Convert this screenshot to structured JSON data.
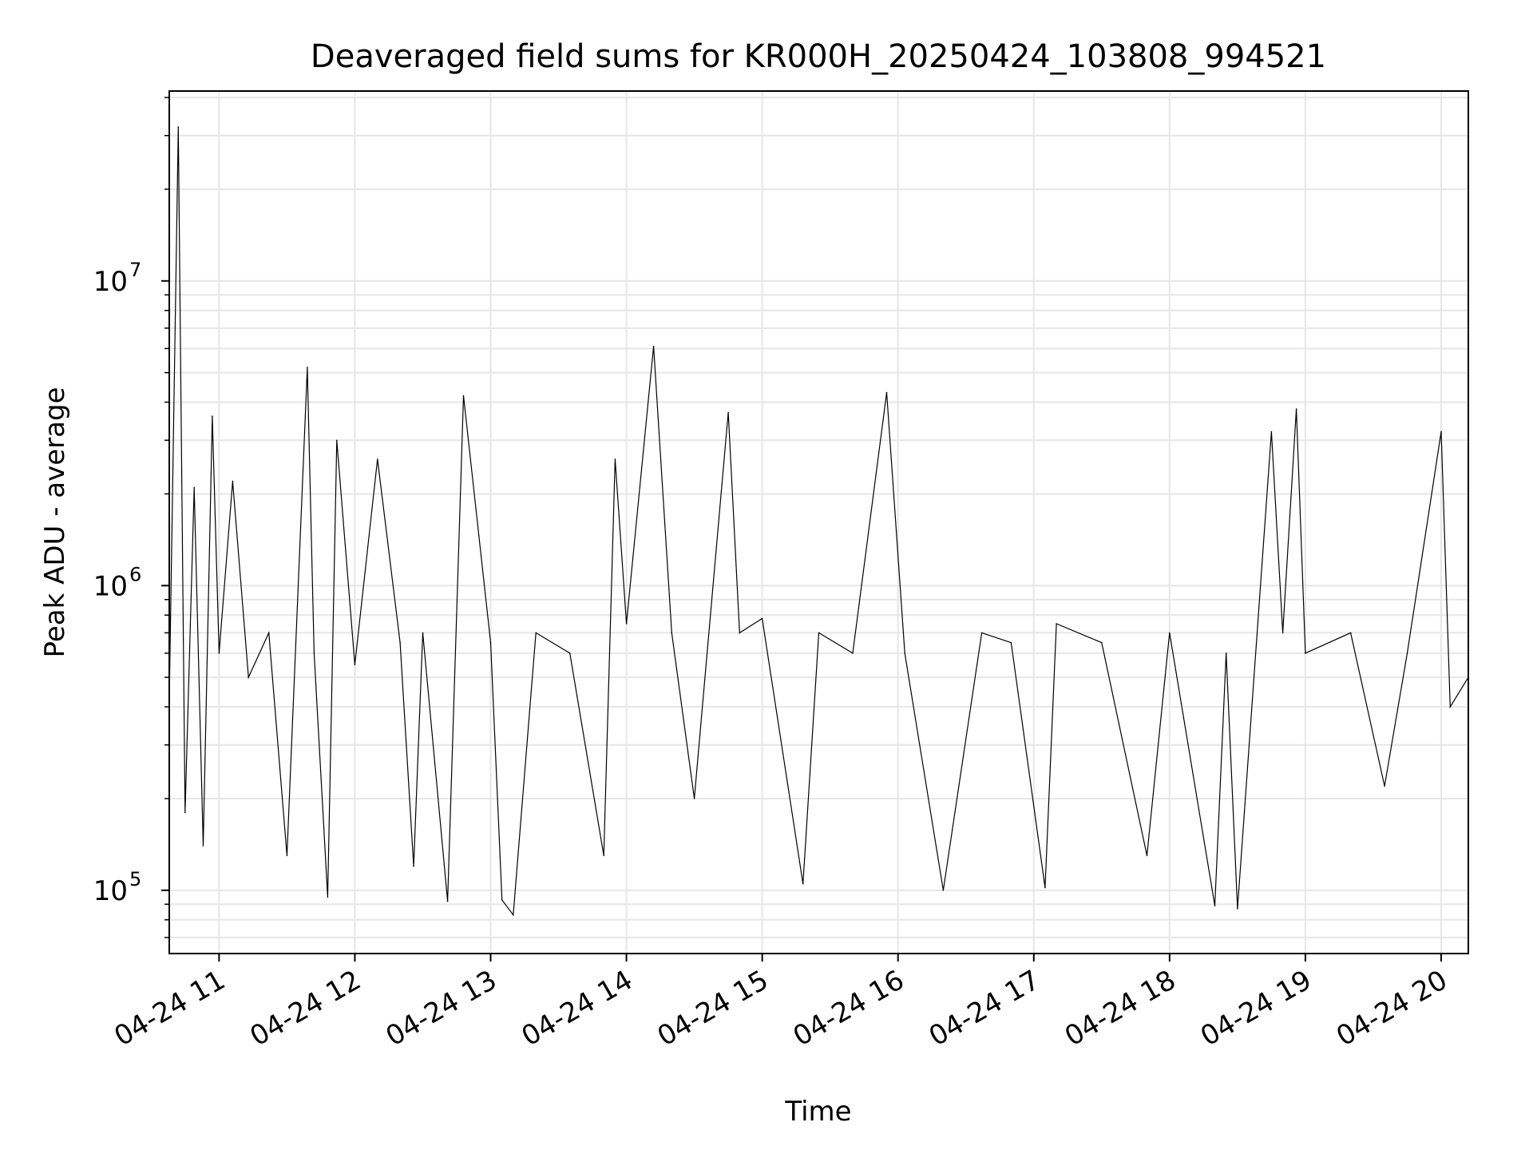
{
  "chart_data": {
    "type": "line",
    "title": "Deaveraged field sums for KR000H_20250424_103808_994521",
    "xlabel": "Time",
    "ylabel": "Peak ADU - average",
    "yscale": "log",
    "ylim": [
      62000,
      42000000
    ],
    "xlim": [
      "04-24 10:38",
      "04-24 20:12"
    ],
    "grid": true,
    "line_color": "#000000",
    "x_ticks": [
      "04-24 11",
      "04-24 12",
      "04-24 13",
      "04-24 14",
      "04-24 15",
      "04-24 16",
      "04-24 17",
      "04-24 18",
      "04-24 19",
      "04-24 20"
    ],
    "y_ticks": [
      {
        "base": "10",
        "exp": "5",
        "value": 100000
      },
      {
        "base": "10",
        "exp": "6",
        "value": 1000000
      },
      {
        "base": "10",
        "exp": "7",
        "value": 10000000
      }
    ],
    "x": [
      "04-24 10:38",
      "04-24 10:42",
      "04-24 10:45",
      "04-24 10:49",
      "04-24 10:53",
      "04-24 10:57",
      "04-24 11:00",
      "04-24 11:06",
      "04-24 11:13",
      "04-24 11:22",
      "04-24 11:30",
      "04-24 11:39",
      "04-24 11:42",
      "04-24 11:48",
      "04-24 11:52",
      "04-24 12:00",
      "04-24 12:10",
      "04-24 12:20",
      "04-24 12:26",
      "04-24 12:30",
      "04-24 12:41",
      "04-24 12:48",
      "04-24 13:00",
      "04-24 13:05",
      "04-24 13:10",
      "04-24 13:20",
      "04-24 13:35",
      "04-24 13:50",
      "04-24 13:55",
      "04-24 14:00",
      "04-24 14:12",
      "04-24 14:20",
      "04-24 14:30",
      "04-24 14:45",
      "04-24 14:50",
      "04-24 15:00",
      "04-24 15:18",
      "04-24 15:25",
      "04-24 15:40",
      "04-24 15:55",
      "04-24 16:03",
      "04-24 16:20",
      "04-24 16:37",
      "04-24 16:50",
      "04-24 17:05",
      "04-24 17:10",
      "04-24 17:30",
      "04-24 17:50",
      "04-24 18:00",
      "04-24 18:20",
      "04-24 18:25",
      "04-24 18:30",
      "04-24 18:45",
      "04-24 18:50",
      "04-24 18:56",
      "04-24 19:00",
      "04-24 19:20",
      "04-24 19:35",
      "04-24 19:45",
      "04-24 20:00",
      "04-24 20:04",
      "04-24 20:12"
    ],
    "series": [
      {
        "values": [
          420000,
          32000000,
          180000,
          2100000,
          140000,
          3600000,
          600000,
          2200000,
          500000,
          700000,
          130000,
          5200000,
          600000,
          95000,
          3000000,
          550000,
          2600000,
          650000,
          120000,
          700000,
          92000,
          4200000,
          650000,
          93000,
          83000,
          700000,
          600000,
          130000,
          2600000,
          750000,
          6100000,
          700000,
          200000,
          3700000,
          700000,
          780000,
          105000,
          700000,
          600000,
          4300000,
          600000,
          100000,
          700000,
          650000,
          102000,
          750000,
          650000,
          130000,
          700000,
          89000,
          600000,
          87000,
          3200000,
          700000,
          3800000,
          600000,
          700000,
          220000,
          600000,
          3200000,
          400000,
          500000
        ]
      }
    ]
  }
}
